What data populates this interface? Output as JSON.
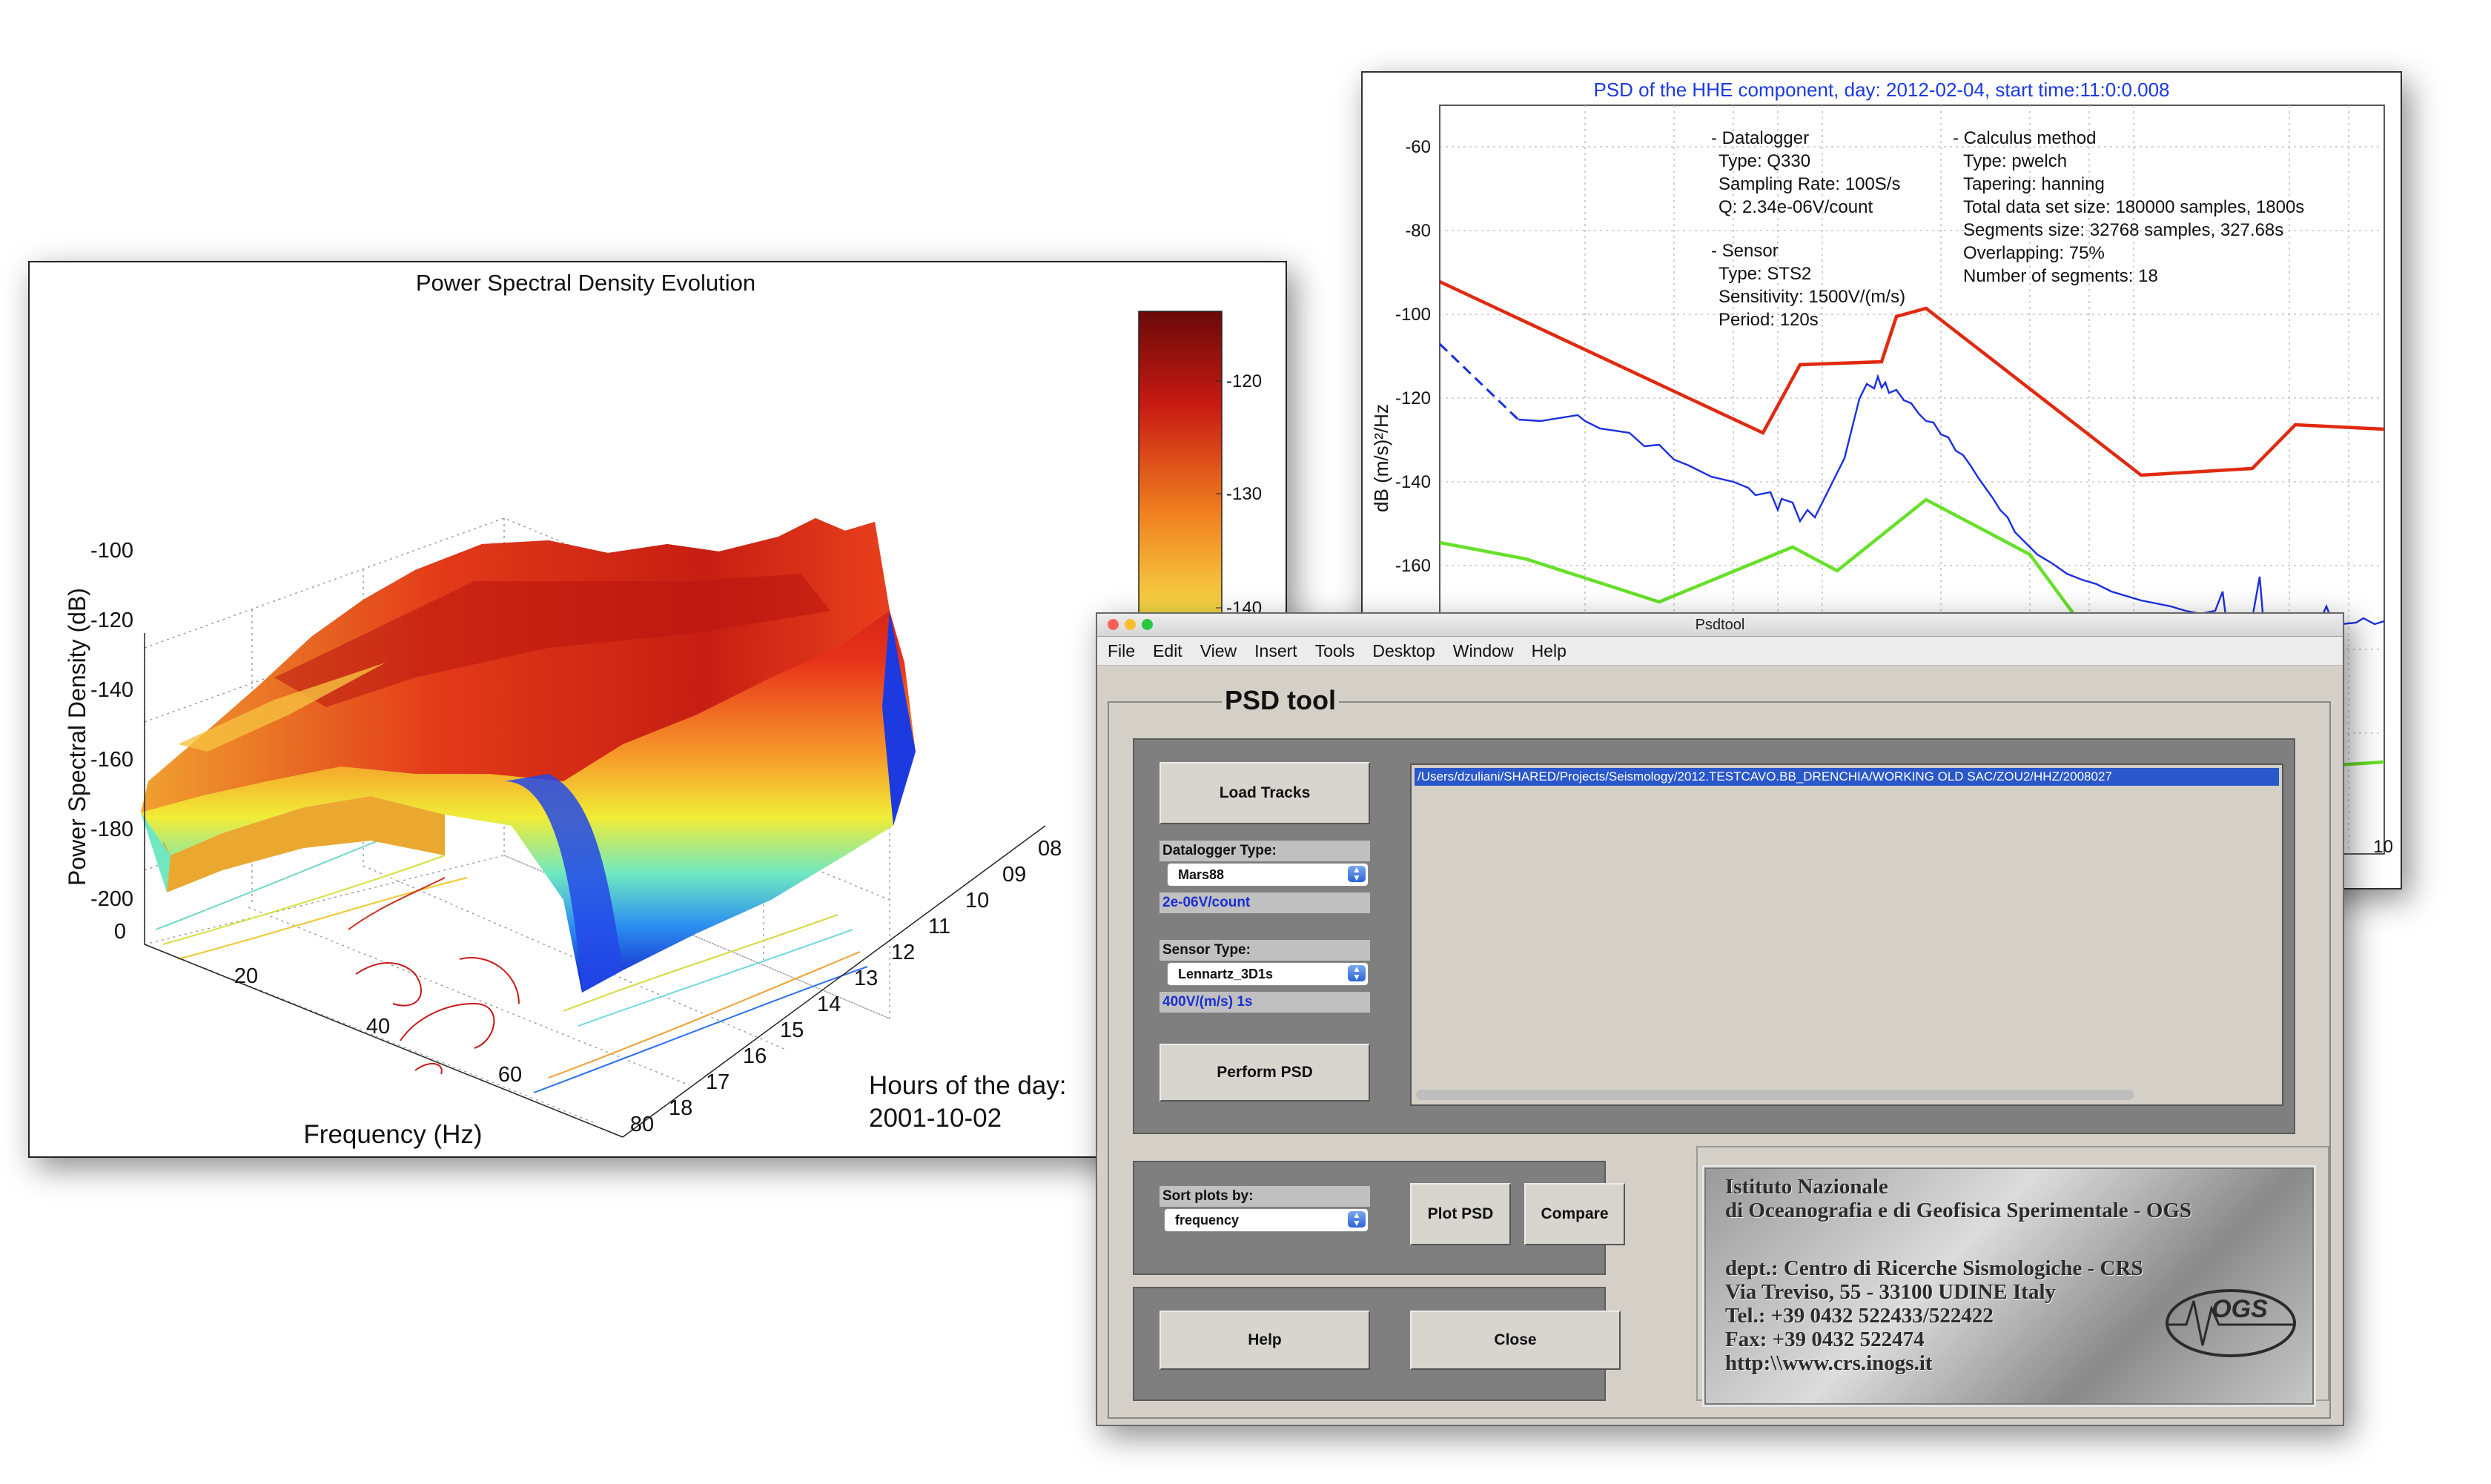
{
  "surface3d": {
    "title": "Power Spectral Density Evolution",
    "zlabel": "Power Spectral Density (dB)",
    "xlabel": "Frequency (Hz)",
    "hours_label": "Hours of the day:",
    "date_label": "2001-10-02",
    "z_ticks": [
      "-100",
      "-120",
      "-140",
      "-160",
      "-180",
      "-200"
    ],
    "freq_ticks": [
      "0",
      "20",
      "40",
      "60",
      "80"
    ],
    "hour_ticks": [
      "08",
      "09",
      "10",
      "11",
      "12",
      "13",
      "14",
      "15",
      "16",
      "17",
      "18"
    ],
    "colorbar_ticks": [
      "-120",
      "-130",
      "-140"
    ]
  },
  "psd_plot": {
    "title": "PSD of the HHE component, day: 2012-02-04, start time:11:0:0.008",
    "ylabel": "dB (m/s)²/Hz",
    "y_ticks": [
      "-60",
      "-80",
      "-100",
      "-120",
      "-140",
      "-160"
    ],
    "x_tick_partial": "10",
    "datalogger": [
      "- Datalogger",
      "Type: Q330",
      "Sampling Rate: 100S/s",
      "Q: 2.34e-06V/count"
    ],
    "sensor": [
      "-  Sensor",
      "Type: STS2",
      "Sensitivity: 1500V/(m/s)",
      "Period: 120s"
    ],
    "calculus": [
      "- Calculus method",
      "Type: pwelch",
      "Tapering: hanning",
      "Total data set size: 180000 samples, 1800s",
      "Segments size: 32768 samples, 327.68s",
      "Overlapping: 75%",
      "Number of segments: 18"
    ],
    "colors": {
      "nhnm": "#e02a10",
      "nlnm": "#66e02a",
      "psd": "#1a2fe0",
      "title": "#1a3adf"
    }
  },
  "tool": {
    "window_title": "Psdtool",
    "menu": [
      "File",
      "Edit",
      "View",
      "Insert",
      "Tools",
      "Desktop",
      "Window",
      "Help"
    ],
    "frame_title": "PSD tool",
    "load_button": "Load Tracks",
    "datalogger_label": "Datalogger Type:",
    "datalogger_value": "Mars88",
    "datalogger_q": "2e-06V/count",
    "sensor_label": "Sensor Type:",
    "sensor_value": "Lennartz_3D1s",
    "sensor_sens": "400V/(m/s) 1s",
    "perform_button": "Perform PSD",
    "file_path": "/Users/dzuliani/SHARED/Projects/Seismology/2012.TESTCAVO.BB_DRENCHIA/WORKING OLD SAC/ZOU2/HHZ/2008027",
    "sort_label": "Sort plots by:",
    "sort_value": "frequency",
    "plot_button": "Plot PSD",
    "compare_button": "Compare",
    "help_button": "Help",
    "close_button": "Close",
    "logo_lines": [
      "Istituto Nazionale",
      "di Oceanografia e di Geofisica Sperimentale - OGS",
      "dept.: Centro di Ricerche Sismologiche - CRS",
      "Via Treviso, 55 - 33100 UDINE Italy",
      "Tel.: +39 0432 522433/522422",
      "Fax: +39 0432 522474",
      "http:\\\\www.crs.inogs.it"
    ],
    "logo_badge": "OGS"
  }
}
